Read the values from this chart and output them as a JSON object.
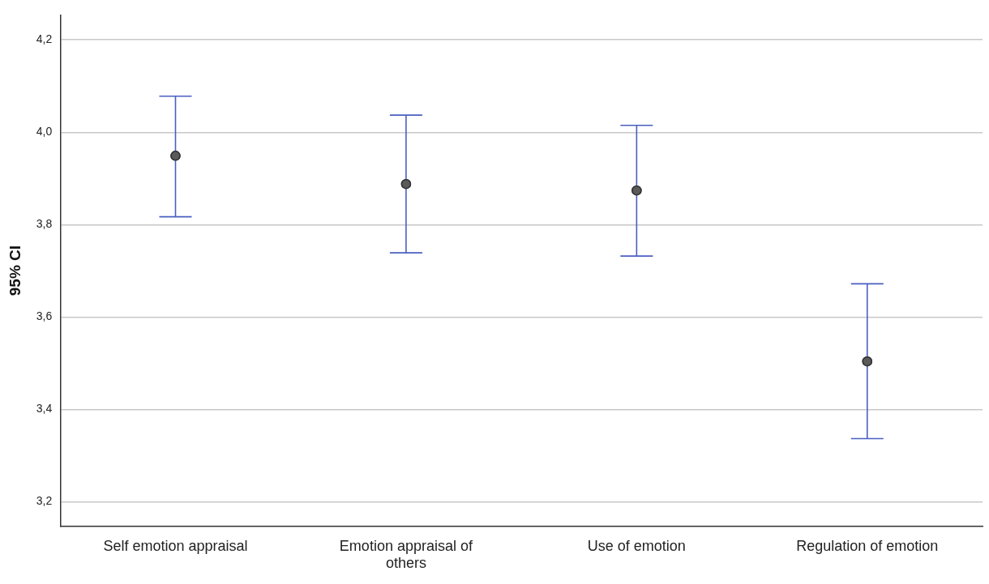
{
  "chart_data": {
    "type": "scatter",
    "ylabel": "95% CI",
    "categories": [
      "Self emotion appraisal",
      "Emotion appraisal of others",
      "Use of emotion",
      "Regulation of emotion"
    ],
    "color": "#5a5a5a",
    "values": [
      3.949,
      3.888,
      3.874,
      3.504
    ],
    "errors": [
      [
        3.817,
        4.078
      ],
      [
        3.739,
        4.037
      ],
      [
        3.732,
        4.015
      ],
      [
        3.337,
        3.672
      ]
    ],
    "ylim": [
      3.147,
      4.254
    ],
    "yticks": [
      {
        "value": 3.2,
        "label": "3,2"
      },
      {
        "value": 3.4,
        "label": "3,4"
      },
      {
        "value": 3.6,
        "label": "3,6"
      },
      {
        "value": 3.8,
        "label": "3,8"
      },
      {
        "value": 4.0,
        "label": "4,0"
      },
      {
        "value": 4.2,
        "label": "4,2"
      }
    ],
    "grid": "y",
    "marker": "circle",
    "legend": false
  }
}
